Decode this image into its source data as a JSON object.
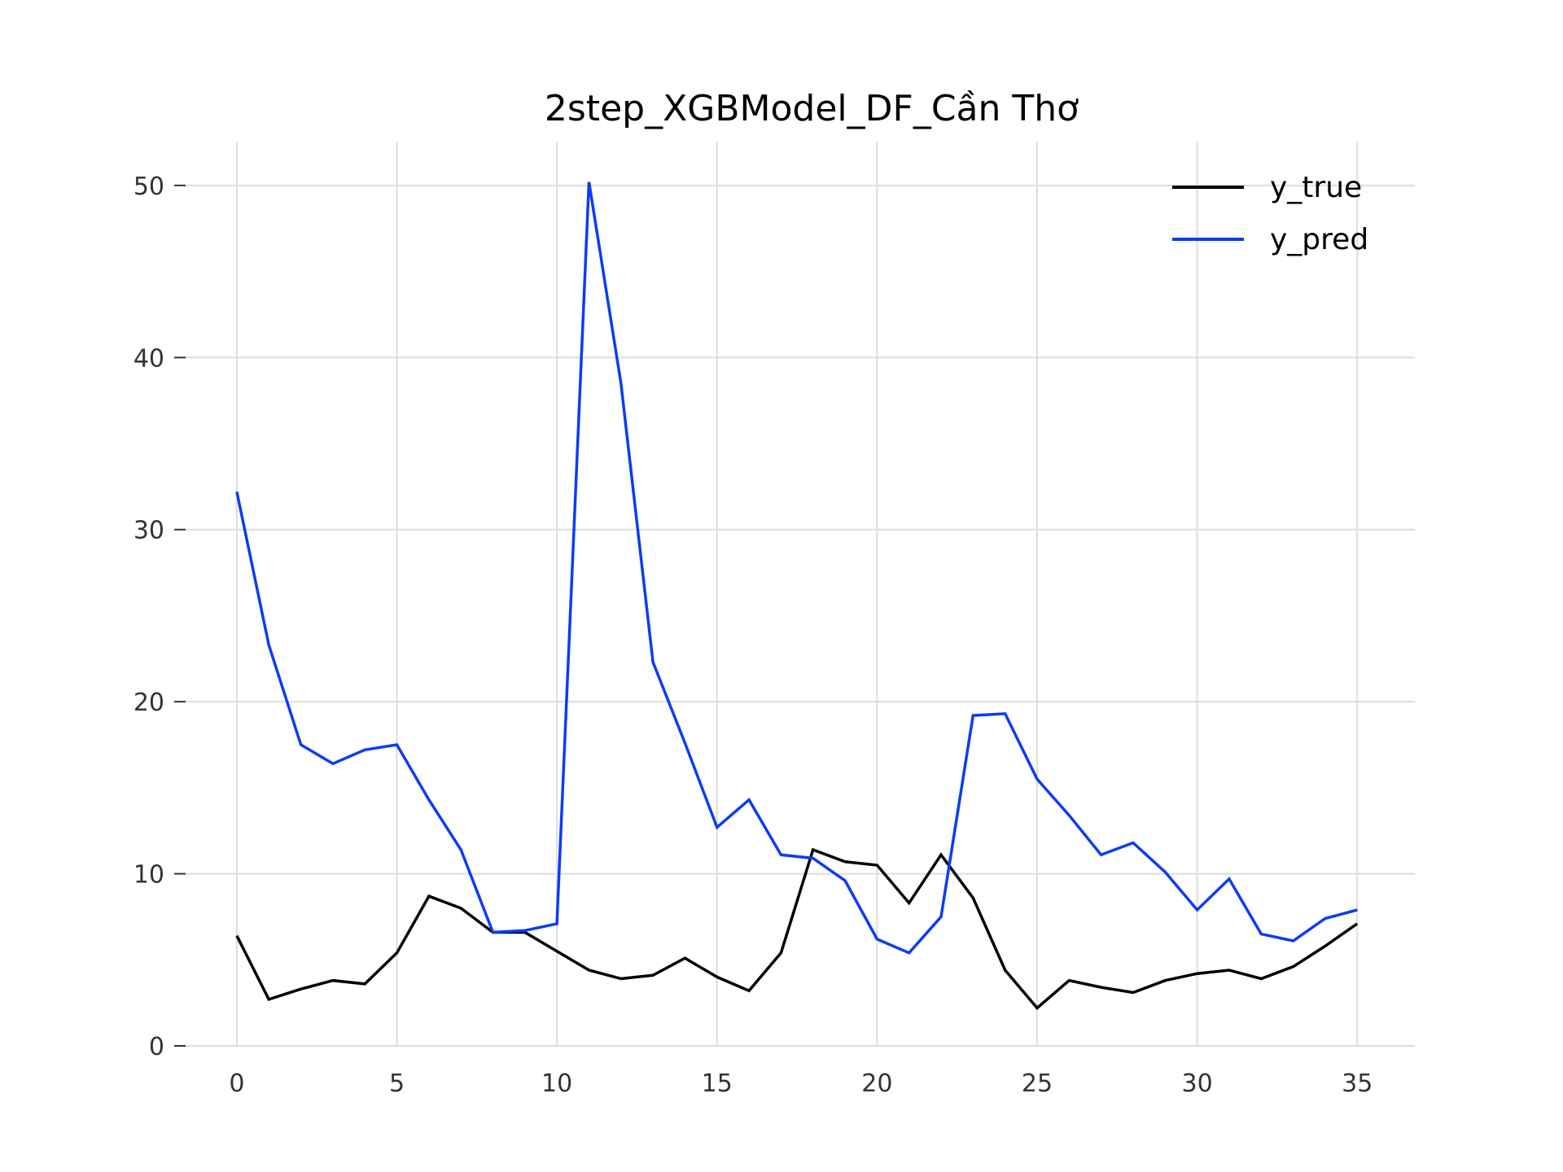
{
  "chart_data": {
    "type": "line",
    "title": "2step_XGBModel_DF_Cần Thơ",
    "xlabel": "",
    "ylabel": "",
    "xlim": [
      -1.6,
      36.8
    ],
    "ylim": [
      0,
      52.5
    ],
    "xticks": [
      0,
      5,
      10,
      15,
      20,
      25,
      30,
      35
    ],
    "yticks": [
      0,
      10,
      20,
      30,
      40,
      50
    ],
    "grid": true,
    "legend_position": "top-right",
    "x": [
      0,
      1,
      2,
      3,
      4,
      5,
      6,
      7,
      8,
      9,
      10,
      11,
      12,
      13,
      14,
      15,
      16,
      17,
      18,
      19,
      20,
      21,
      22,
      23,
      24,
      25,
      26,
      27,
      28,
      29,
      30,
      31,
      32,
      33,
      34,
      35
    ],
    "series": [
      {
        "name": "y_true",
        "color": "#000000",
        "values": [
          6.4,
          2.7,
          3.3,
          3.8,
          3.6,
          5.4,
          8.7,
          8.0,
          6.6,
          6.6,
          5.5,
          4.4,
          3.9,
          4.1,
          5.1,
          4.0,
          3.2,
          5.4,
          11.4,
          10.7,
          10.5,
          8.3,
          11.1,
          8.6,
          4.4,
          2.2,
          3.8,
          3.4,
          3.1,
          3.8,
          4.2,
          4.4,
          3.9,
          4.6,
          5.8,
          7.1
        ]
      },
      {
        "name": "y_pred",
        "color": "#0c3cf5",
        "values": [
          32.2,
          23.3,
          17.5,
          16.4,
          17.2,
          17.5,
          14.3,
          11.4,
          6.6,
          6.7,
          7.1,
          50.2,
          38.5,
          22.3,
          17.6,
          12.7,
          14.3,
          11.1,
          10.9,
          9.6,
          6.2,
          5.4,
          7.5,
          19.2,
          19.3,
          15.5,
          13.4,
          11.1,
          11.8,
          10.1,
          7.9,
          9.7,
          6.5,
          6.1,
          7.4,
          7.9
        ]
      }
    ]
  }
}
